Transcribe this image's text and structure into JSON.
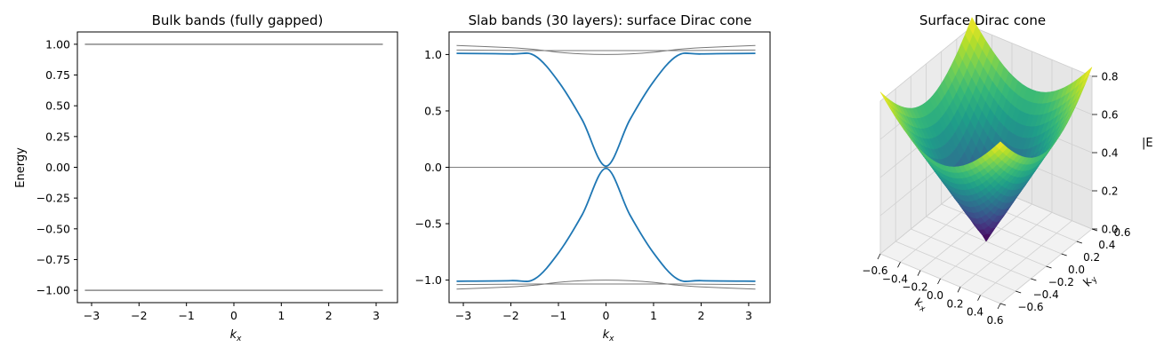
{
  "chart_data": [
    {
      "type": "line",
      "title": "Bulk bands (fully gapped)",
      "xlabel": "k",
      "xlabel_sub": "x",
      "ylabel": "Energy",
      "xlim": [
        -3.3,
        3.45
      ],
      "ylim": [
        -1.1,
        1.1
      ],
      "xticks": [
        "−3",
        "−2",
        "−1",
        "0",
        "1",
        "2",
        "3"
      ],
      "yticks": [
        "1.00",
        "0.75",
        "0.50",
        "0.25",
        "0.00",
        "−0.25",
        "−0.50",
        "−0.75",
        "−1.00"
      ],
      "grid": false,
      "series": [
        {
          "x": [
            -3.1416,
            3.1416
          ],
          "values": [
            1.0,
            1.0
          ],
          "color": "#888888"
        },
        {
          "x": [
            -3.1416,
            3.1416
          ],
          "values": [
            -1.0,
            -1.0
          ],
          "color": "#888888"
        }
      ]
    },
    {
      "type": "line",
      "title": "Slab bands (30 layers): surface Dirac cone",
      "xlabel": "k",
      "xlabel_sub": "x",
      "xlim": [
        -3.3,
        3.45
      ],
      "ylim": [
        -1.2,
        1.2
      ],
      "xticks": [
        "−3",
        "−2",
        "−1",
        "0",
        "1",
        "2",
        "3"
      ],
      "yticks": [
        "1.0",
        "0.5",
        "0.0",
        "−0.5",
        "−1.0"
      ],
      "hline": 0,
      "grid": false,
      "series": [
        {
          "x": [
            -3.1416,
            -2.0,
            -1.5,
            -1.0,
            -0.5,
            0,
            0.5,
            1.0,
            1.5,
            2.0,
            3.1416
          ],
          "values": [
            1.01,
            1.005,
            0.99,
            0.76,
            0.42,
            0.01,
            0.42,
            0.76,
            0.99,
            1.005,
            1.01
          ],
          "color": "#1f77b4"
        },
        {
          "x": [
            -3.1416,
            -2.0,
            -1.5,
            -1.0,
            -0.5,
            0,
            0.5,
            1.0,
            1.5,
            2.0,
            3.1416
          ],
          "values": [
            -1.01,
            -1.005,
            -0.99,
            -0.76,
            -0.42,
            -0.01,
            -0.42,
            -0.76,
            -0.99,
            -1.005,
            -1.01
          ],
          "color": "#1f77b4"
        },
        {
          "x": [
            -3.1416,
            -2.0,
            -1.5,
            -1.0,
            -0.5,
            0,
            0.5,
            1.0,
            1.5,
            2.0,
            3.1416
          ],
          "values": [
            1.08,
            1.06,
            1.045,
            1.02,
            1.005,
            1.0,
            1.005,
            1.02,
            1.045,
            1.06,
            1.08
          ],
          "color": "#777777"
        },
        {
          "x": [
            -3.1416,
            -1.5,
            0,
            1.5,
            3.1416
          ],
          "values": [
            1.04,
            1.035,
            1.035,
            1.035,
            1.04
          ],
          "color": "#777777"
        },
        {
          "x": [
            -3.1416,
            -2.0,
            -1.5,
            -1.0,
            -0.5,
            0,
            0.5,
            1.0,
            1.5,
            2.0,
            3.1416
          ],
          "values": [
            -1.08,
            -1.06,
            -1.045,
            -1.02,
            -1.005,
            -1.0,
            -1.005,
            -1.02,
            -1.045,
            -1.06,
            -1.08
          ],
          "color": "#777777"
        },
        {
          "x": [
            -3.1416,
            -1.5,
            0,
            1.5,
            3.1416
          ],
          "values": [
            -1.04,
            -1.035,
            -1.035,
            -1.035,
            -1.04
          ],
          "color": "#777777"
        }
      ]
    },
    {
      "type": "surface",
      "title": "Surface Dirac cone",
      "xlabel": "k",
      "xlabel_sub": "x",
      "ylabel": "k",
      "ylabel_sub": "y",
      "zlabel": "|E",
      "xlim": [
        -0.6,
        0.6
      ],
      "ylim": [
        -0.6,
        0.6
      ],
      "zlim": [
        0,
        0.8
      ],
      "xticks": [
        "−0.6",
        "−0.4",
        "−0.2",
        "0.0",
        "0.2",
        "0.4",
        "0.6"
      ],
      "yticks": [
        "−0.6",
        "−0.4",
        "−0.2",
        "0.0",
        "0.2",
        "0.4",
        "0.6"
      ],
      "zticks": [
        "0.0",
        "0.2",
        "0.4",
        "0.6",
        "0.8"
      ],
      "function": "|E| = sqrt(kx^2 + ky^2)",
      "colormap": "viridis",
      "z_min": 0.0,
      "z_max": 0.85
    }
  ]
}
